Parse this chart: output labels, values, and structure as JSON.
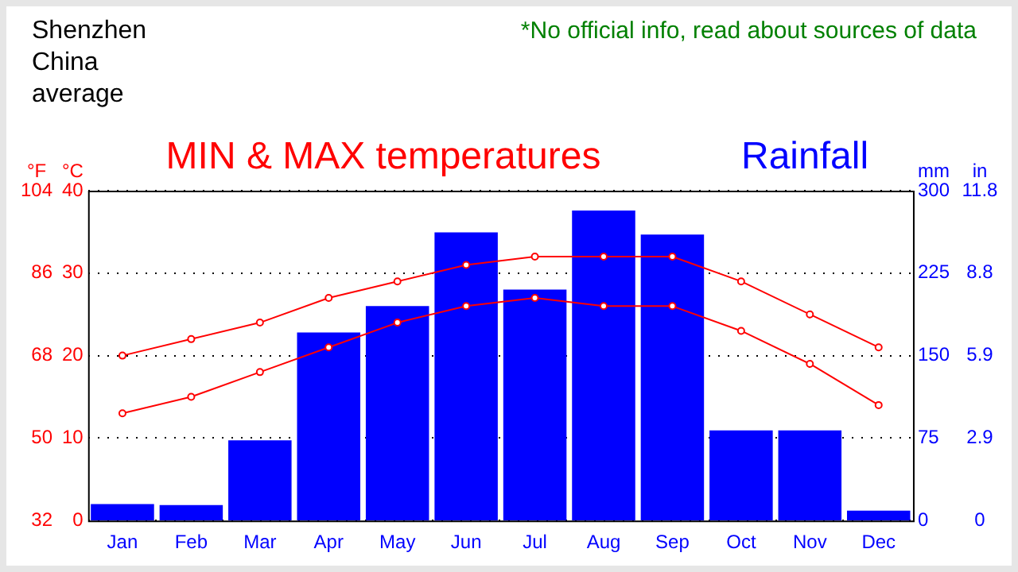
{
  "chart_data": {
    "type": "bar",
    "title": "MIN & MAX temperatures",
    "categories": [
      "Jan",
      "Feb",
      "Mar",
      "Apr",
      "May",
      "Jun",
      "Jul",
      "Aug",
      "Sep",
      "Oct",
      "Nov",
      "Dec"
    ],
    "series": [
      {
        "name": "Rainfall",
        "axis": "y2",
        "color": "#0000ff",
        "values": [
          15,
          14,
          73,
          171,
          195,
          262,
          210,
          282,
          260,
          82,
          82,
          9
        ]
      },
      {
        "type": "line",
        "color": "#ff0000",
        "values": [
          20,
          22,
          24,
          27,
          29,
          31,
          32,
          32,
          32,
          29,
          25,
          21
        ]
      },
      {
        "type": "line",
        "color": "#ff0000",
        "values": [
          13,
          15,
          18,
          21,
          24,
          26,
          27,
          26,
          26,
          23,
          19,
          14
        ]
      }
    ],
    "ylabel": "°C",
    "ylim": [
      0,
      40
    ],
    "yticks": [
      0,
      10,
      20,
      30,
      40
    ],
    "y2label": "mm",
    "y2lim": [
      0,
      300
    ],
    "y2ticks": [
      0,
      75,
      150,
      225,
      300
    ],
    "y3label": "°F",
    "y3lim": [
      32,
      104
    ],
    "y3ticks": [
      32,
      50,
      68,
      86,
      104
    ],
    "grid": "y",
    "marker": "circle",
    "line_style": "solid",
    "annotations": [
      "Shenzhen\nChina\naverage",
      "*No official info, read about sources of data",
      "in",
      "0",
      "2.9",
      "5.9",
      "8.8",
      "11.8"
    ]
  }
}
